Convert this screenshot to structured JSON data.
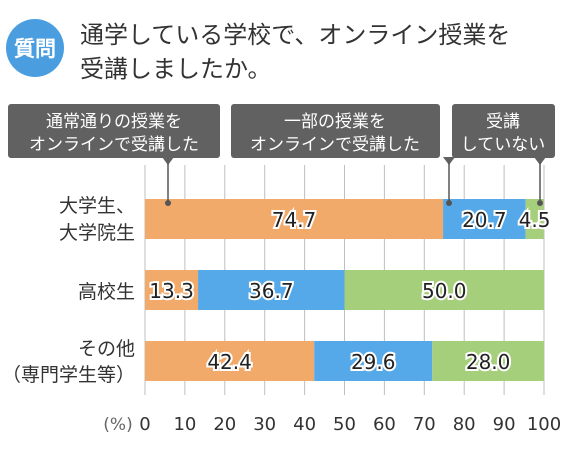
{
  "question": {
    "badge": "質問",
    "line1": "通学している学校で、オンライン授業を",
    "line2": "受講しましたか。"
  },
  "legend_boxes": [
    {
      "lines": [
        "通常通りの授業を",
        "オンラインで受講した"
      ]
    },
    {
      "lines": [
        "一部の授業を",
        "オンラインで受講した"
      ]
    },
    {
      "lines": [
        "受講",
        "していない"
      ]
    }
  ],
  "colors": {
    "badge": "#4a9ee0",
    "normal": "#f2aa6b",
    "partial": "#55a9e8",
    "none": "#a6cf7c",
    "box": "#616161",
    "grid": "#bfbfbf",
    "text": "#333333"
  },
  "chart_data": {
    "type": "bar",
    "orientation": "horizontal",
    "stacked": true,
    "categories": [
      {
        "lines": [
          "大学生、",
          "大学院生"
        ]
      },
      {
        "lines": [
          "高校生"
        ]
      },
      {
        "lines": [
          "その他",
          "（専門学生等）"
        ]
      }
    ],
    "series": [
      {
        "name": "通常通りの授業をオンラインで受講した",
        "values": [
          74.7,
          13.3,
          42.4
        ]
      },
      {
        "name": "一部の授業をオンラインで受講した",
        "values": [
          20.7,
          36.7,
          29.6
        ]
      },
      {
        "name": "受講していない",
        "values": [
          4.5,
          50.0,
          28.0
        ]
      }
    ],
    "value_labels": [
      [
        "74.7",
        "20.7",
        "4.5"
      ],
      [
        "13.3",
        "36.7",
        "50.0"
      ],
      [
        "42.4",
        "29.6",
        "28.0"
      ]
    ],
    "xlim": [
      0,
      100
    ],
    "xticks": [
      "0",
      "10",
      "20",
      "30",
      "40",
      "50",
      "60",
      "70",
      "80",
      "90",
      "100"
    ],
    "xunit": "(%)",
    "grid": true,
    "legend": "top"
  }
}
